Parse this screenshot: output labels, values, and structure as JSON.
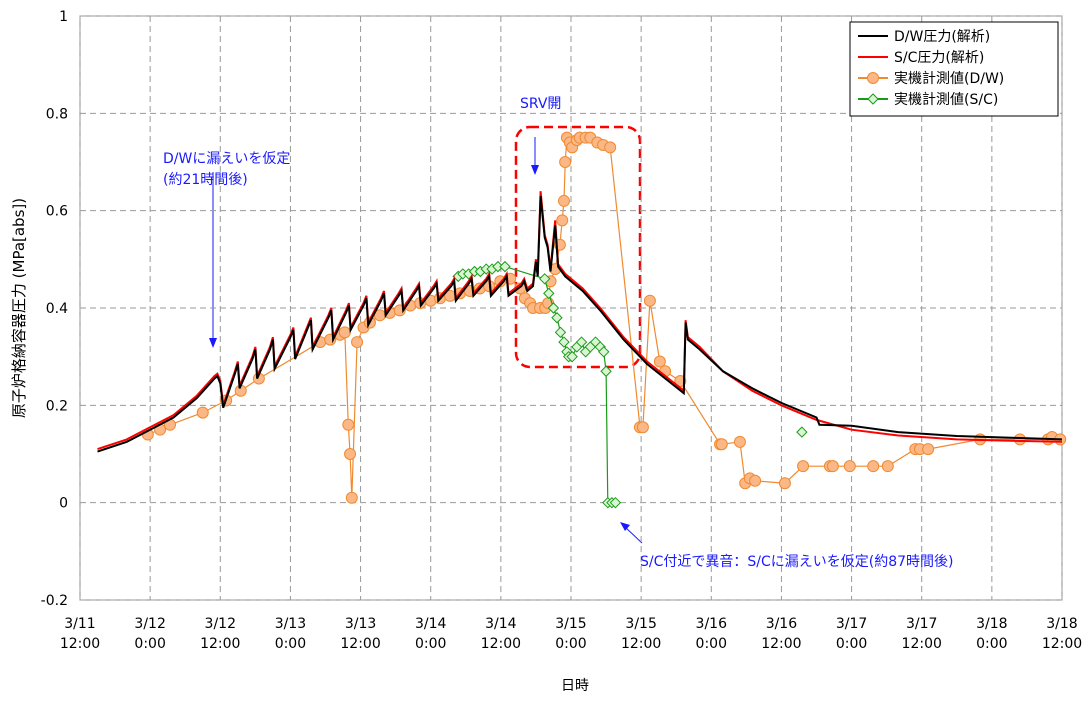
{
  "chart_data": {
    "type": "line",
    "xlabel": "日時",
    "ylabel": "原子炉格納容器圧力 (MPa[abs])",
    "xlim": [
      0,
      168
    ],
    "xticks": [
      {
        "value": 0,
        "label": "3/11 12:00"
      },
      {
        "value": 12,
        "label": "3/12 0:00"
      },
      {
        "value": 24,
        "label": "3/12 12:00"
      },
      {
        "value": 36,
        "label": "3/13 0:00"
      },
      {
        "value": 48,
        "label": "3/13 12:00"
      },
      {
        "value": 60,
        "label": "3/14 0:00"
      },
      {
        "value": 72,
        "label": "3/14 12:00"
      },
      {
        "value": 84,
        "label": "3/15 0:00"
      },
      {
        "value": 96,
        "label": "3/15 12:00"
      },
      {
        "value": 108,
        "label": "3/16 0:00"
      },
      {
        "value": 120,
        "label": "3/16 12:00"
      },
      {
        "value": 132,
        "label": "3/17 0:00"
      },
      {
        "value": 144,
        "label": "3/17 12:00"
      },
      {
        "value": 156,
        "label": "3/18 0:00"
      },
      {
        "value": 168,
        "label": "3/18 12:00"
      }
    ],
    "ylim": [
      -0.2,
      1
    ],
    "yticks": [
      -0.2,
      0,
      0.2,
      0.4,
      0.6,
      0.8,
      1
    ],
    "grid": true,
    "legend": "top-right",
    "annotations": [
      {
        "text": "SRV開"
      },
      {
        "text": "D/Wに漏えいを仮定"
      },
      {
        "text": "(約21時間後)"
      },
      {
        "text": "S/C付近で異音：S/Cに漏えいを仮定(約87時間後)"
      }
    ],
    "series": [
      {
        "name": "D/W圧力(解析)",
        "color": "#000000",
        "marker": "none",
        "x": [
          3,
          8,
          12,
          16,
          20,
          23,
          23.5,
          24,
          24.5,
          26.5,
          27,
          27.3,
          29.5,
          30,
          30.3,
          32.5,
          33,
          33.3,
          36,
          36.5,
          36.8,
          39,
          39.5,
          39.8,
          42.5,
          43,
          43.3,
          45.5,
          46,
          46.3,
          48.5,
          49,
          49.3,
          51.5,
          52,
          52.3,
          54.5,
          55,
          55.3,
          57.5,
          58,
          58.3,
          60.5,
          61,
          61.3,
          63.5,
          64,
          64.3,
          66.5,
          67,
          67.3,
          69.5,
          70,
          70.3,
          72.5,
          73,
          73.3,
          75.5,
          76,
          76.5,
          77.5,
          78,
          78.3,
          78.8,
          79.5,
          80,
          80.5,
          81.3,
          81.8,
          83,
          86,
          89,
          93,
          97,
          103.3,
          103.6,
          104,
          106,
          110,
          115,
          120,
          126,
          126.5,
          132,
          140,
          150,
          160,
          168
        ],
        "values": [
          0.105,
          0.125,
          0.15,
          0.175,
          0.215,
          0.255,
          0.26,
          0.245,
          0.195,
          0.265,
          0.285,
          0.235,
          0.295,
          0.315,
          0.255,
          0.315,
          0.335,
          0.275,
          0.34,
          0.355,
          0.295,
          0.36,
          0.375,
          0.315,
          0.38,
          0.395,
          0.335,
          0.39,
          0.405,
          0.355,
          0.405,
          0.42,
          0.365,
          0.415,
          0.43,
          0.385,
          0.425,
          0.435,
          0.395,
          0.435,
          0.445,
          0.405,
          0.44,
          0.45,
          0.415,
          0.445,
          0.455,
          0.415,
          0.45,
          0.46,
          0.425,
          0.455,
          0.465,
          0.425,
          0.455,
          0.465,
          0.425,
          0.445,
          0.455,
          0.435,
          0.445,
          0.495,
          0.465,
          0.63,
          0.545,
          0.525,
          0.475,
          0.57,
          0.485,
          0.465,
          0.435,
          0.395,
          0.335,
          0.285,
          0.225,
          0.37,
          0.335,
          0.315,
          0.27,
          0.235,
          0.205,
          0.175,
          0.16,
          0.158,
          0.145,
          0.137,
          0.133,
          0.13
        ]
      },
      {
        "name": "S/C圧力(解析)",
        "color": "#ff0000",
        "marker": "none",
        "x": [
          3,
          8,
          12,
          16,
          20,
          23,
          23.5,
          24,
          24.5,
          26.5,
          27,
          27.3,
          29.5,
          30,
          30.3,
          32.5,
          33,
          33.3,
          36,
          36.5,
          36.8,
          39,
          39.5,
          39.8,
          42.5,
          43,
          43.3,
          45.5,
          46,
          46.3,
          48.5,
          49,
          49.3,
          51.5,
          52,
          52.3,
          54.5,
          55,
          55.3,
          57.5,
          58,
          58.3,
          60.5,
          61,
          61.3,
          63.5,
          64,
          64.3,
          66.5,
          67,
          67.3,
          69.5,
          70,
          70.3,
          72.5,
          73,
          73.3,
          75.5,
          76,
          76.5,
          77.5,
          78,
          78.3,
          78.8,
          79.5,
          80,
          80.5,
          81.3,
          81.8,
          83,
          86,
          89,
          93,
          97,
          103.3,
          103.6,
          104,
          106,
          110,
          115,
          120,
          126,
          132,
          140,
          150,
          160,
          168
        ],
        "values": [
          0.11,
          0.13,
          0.155,
          0.18,
          0.22,
          0.26,
          0.265,
          0.25,
          0.2,
          0.27,
          0.29,
          0.24,
          0.3,
          0.32,
          0.26,
          0.32,
          0.34,
          0.28,
          0.345,
          0.36,
          0.3,
          0.365,
          0.38,
          0.32,
          0.385,
          0.4,
          0.34,
          0.395,
          0.41,
          0.36,
          0.41,
          0.425,
          0.37,
          0.42,
          0.435,
          0.39,
          0.43,
          0.44,
          0.4,
          0.44,
          0.45,
          0.41,
          0.445,
          0.455,
          0.42,
          0.45,
          0.46,
          0.42,
          0.455,
          0.465,
          0.43,
          0.46,
          0.47,
          0.43,
          0.46,
          0.47,
          0.43,
          0.45,
          0.46,
          0.44,
          0.45,
          0.5,
          0.47,
          0.64,
          0.55,
          0.53,
          0.48,
          0.58,
          0.49,
          0.47,
          0.44,
          0.4,
          0.34,
          0.29,
          0.23,
          0.375,
          0.34,
          0.32,
          0.27,
          0.23,
          0.2,
          0.17,
          0.15,
          0.138,
          0.13,
          0.127,
          0.125
        ]
      },
      {
        "name": "実機計測値(D/W)",
        "color": "#f08a30",
        "marker": "circle",
        "marker_fill": "#fbb886",
        "x": [
          11.6,
          13.7,
          15.4,
          21,
          25,
          27.5,
          30.6,
          41.1,
          42.8,
          44.5,
          45.3,
          45.9,
          46.2,
          46.5,
          47.4,
          48.5,
          49.6,
          51.3,
          53,
          54.7,
          56.5,
          58.2,
          60,
          61.6,
          63.3,
          65,
          66.7,
          68.4,
          70,
          71.9,
          73.6,
          75.3,
          76.1,
          77,
          77.5,
          78.7,
          79.6,
          80.1,
          80.5,
          81.3,
          82.1,
          82.5,
          82.8,
          83,
          83.3,
          83.8,
          84.2,
          85,
          85.5,
          86.5,
          87.3,
          88.5,
          89.5,
          90.7,
          95.8,
          96.3,
          97.5,
          99.2,
          100.1,
          102.7,
          109.5,
          109.8,
          112.9,
          113.8,
          114.6,
          115.5,
          120.6,
          123.7,
          128.3,
          128.8,
          131.7,
          135.7,
          138.2,
          142.9,
          143.7,
          145.1,
          154,
          160.8,
          165.6,
          166.3,
          167.7
        ],
        "values": [
          0.14,
          0.15,
          0.16,
          0.185,
          0.21,
          0.23,
          0.255,
          0.33,
          0.335,
          0.345,
          0.35,
          0.16,
          0.1,
          0.01,
          0.33,
          0.36,
          0.37,
          0.385,
          0.39,
          0.395,
          0.405,
          0.41,
          0.415,
          0.42,
          0.425,
          0.43,
          0.435,
          0.44,
          0.445,
          0.455,
          0.46,
          0.44,
          0.42,
          0.41,
          0.4,
          0.4,
          0.4,
          0.41,
          0.455,
          0.48,
          0.53,
          0.58,
          0.62,
          0.7,
          0.75,
          0.74,
          0.73,
          0.745,
          0.75,
          0.75,
          0.75,
          0.74,
          0.735,
          0.73,
          0.155,
          0.155,
          0.415,
          0.29,
          0.27,
          0.25,
          0.12,
          0.12,
          0.125,
          0.04,
          0.05,
          0.045,
          0.04,
          0.075,
          0.075,
          0.075,
          0.075,
          0.075,
          0.075,
          0.11,
          0.11,
          0.11,
          0.13,
          0.13,
          0.13,
          0.135,
          0.13
        ]
      },
      {
        "name": "実機計測値(S/C)",
        "color": "#1a9a1a",
        "marker": "diamond",
        "marker_fill": "#d9f5d2",
        "x": [
          64.7,
          65.5,
          66.5,
          67.5,
          68.5,
          69.5,
          70.5,
          71.5,
          72.7,
          79.5,
          80.2,
          81,
          81.6,
          82.2,
          82.8,
          83.3,
          83.6,
          84.2,
          85,
          85.8,
          86.5,
          87.3,
          88.2,
          89,
          89.6,
          90,
          90.3,
          91,
          91.6,
          null,
          123.5
        ],
        "values": [
          0.465,
          0.47,
          0.47,
          0.475,
          0.475,
          0.48,
          0.48,
          0.485,
          0.485,
          0.46,
          0.43,
          0.4,
          0.38,
          0.35,
          0.33,
          0.31,
          0.3,
          0.3,
          0.32,
          0.33,
          0.31,
          0.32,
          0.33,
          0.32,
          0.31,
          0.27,
          0,
          0,
          0,
          null,
          0.145
        ]
      }
    ]
  }
}
